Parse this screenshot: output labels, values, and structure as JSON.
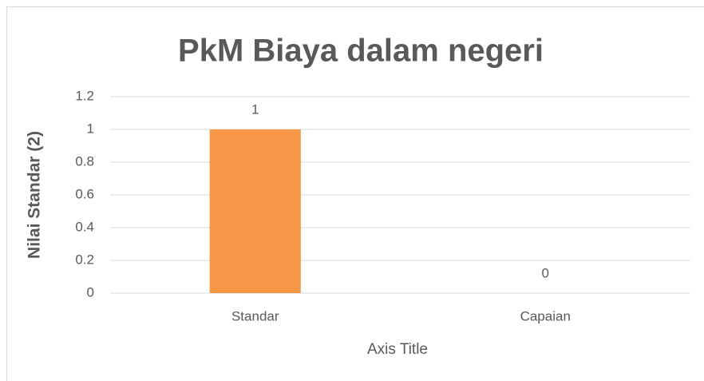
{
  "chart_data": {
    "type": "bar",
    "title": "PkM Biaya dalam negeri",
    "categories": [
      "Standar",
      "Capaian"
    ],
    "values": [
      1,
      0
    ],
    "color": "#f79646",
    "xlabel": "Axis Title",
    "ylabel": "Nilai Standar (2)",
    "ylim": [
      0,
      1.2
    ],
    "yticks": [
      0,
      0.2,
      0.4,
      0.6,
      0.8,
      1,
      1.2
    ],
    "grid": true
  }
}
